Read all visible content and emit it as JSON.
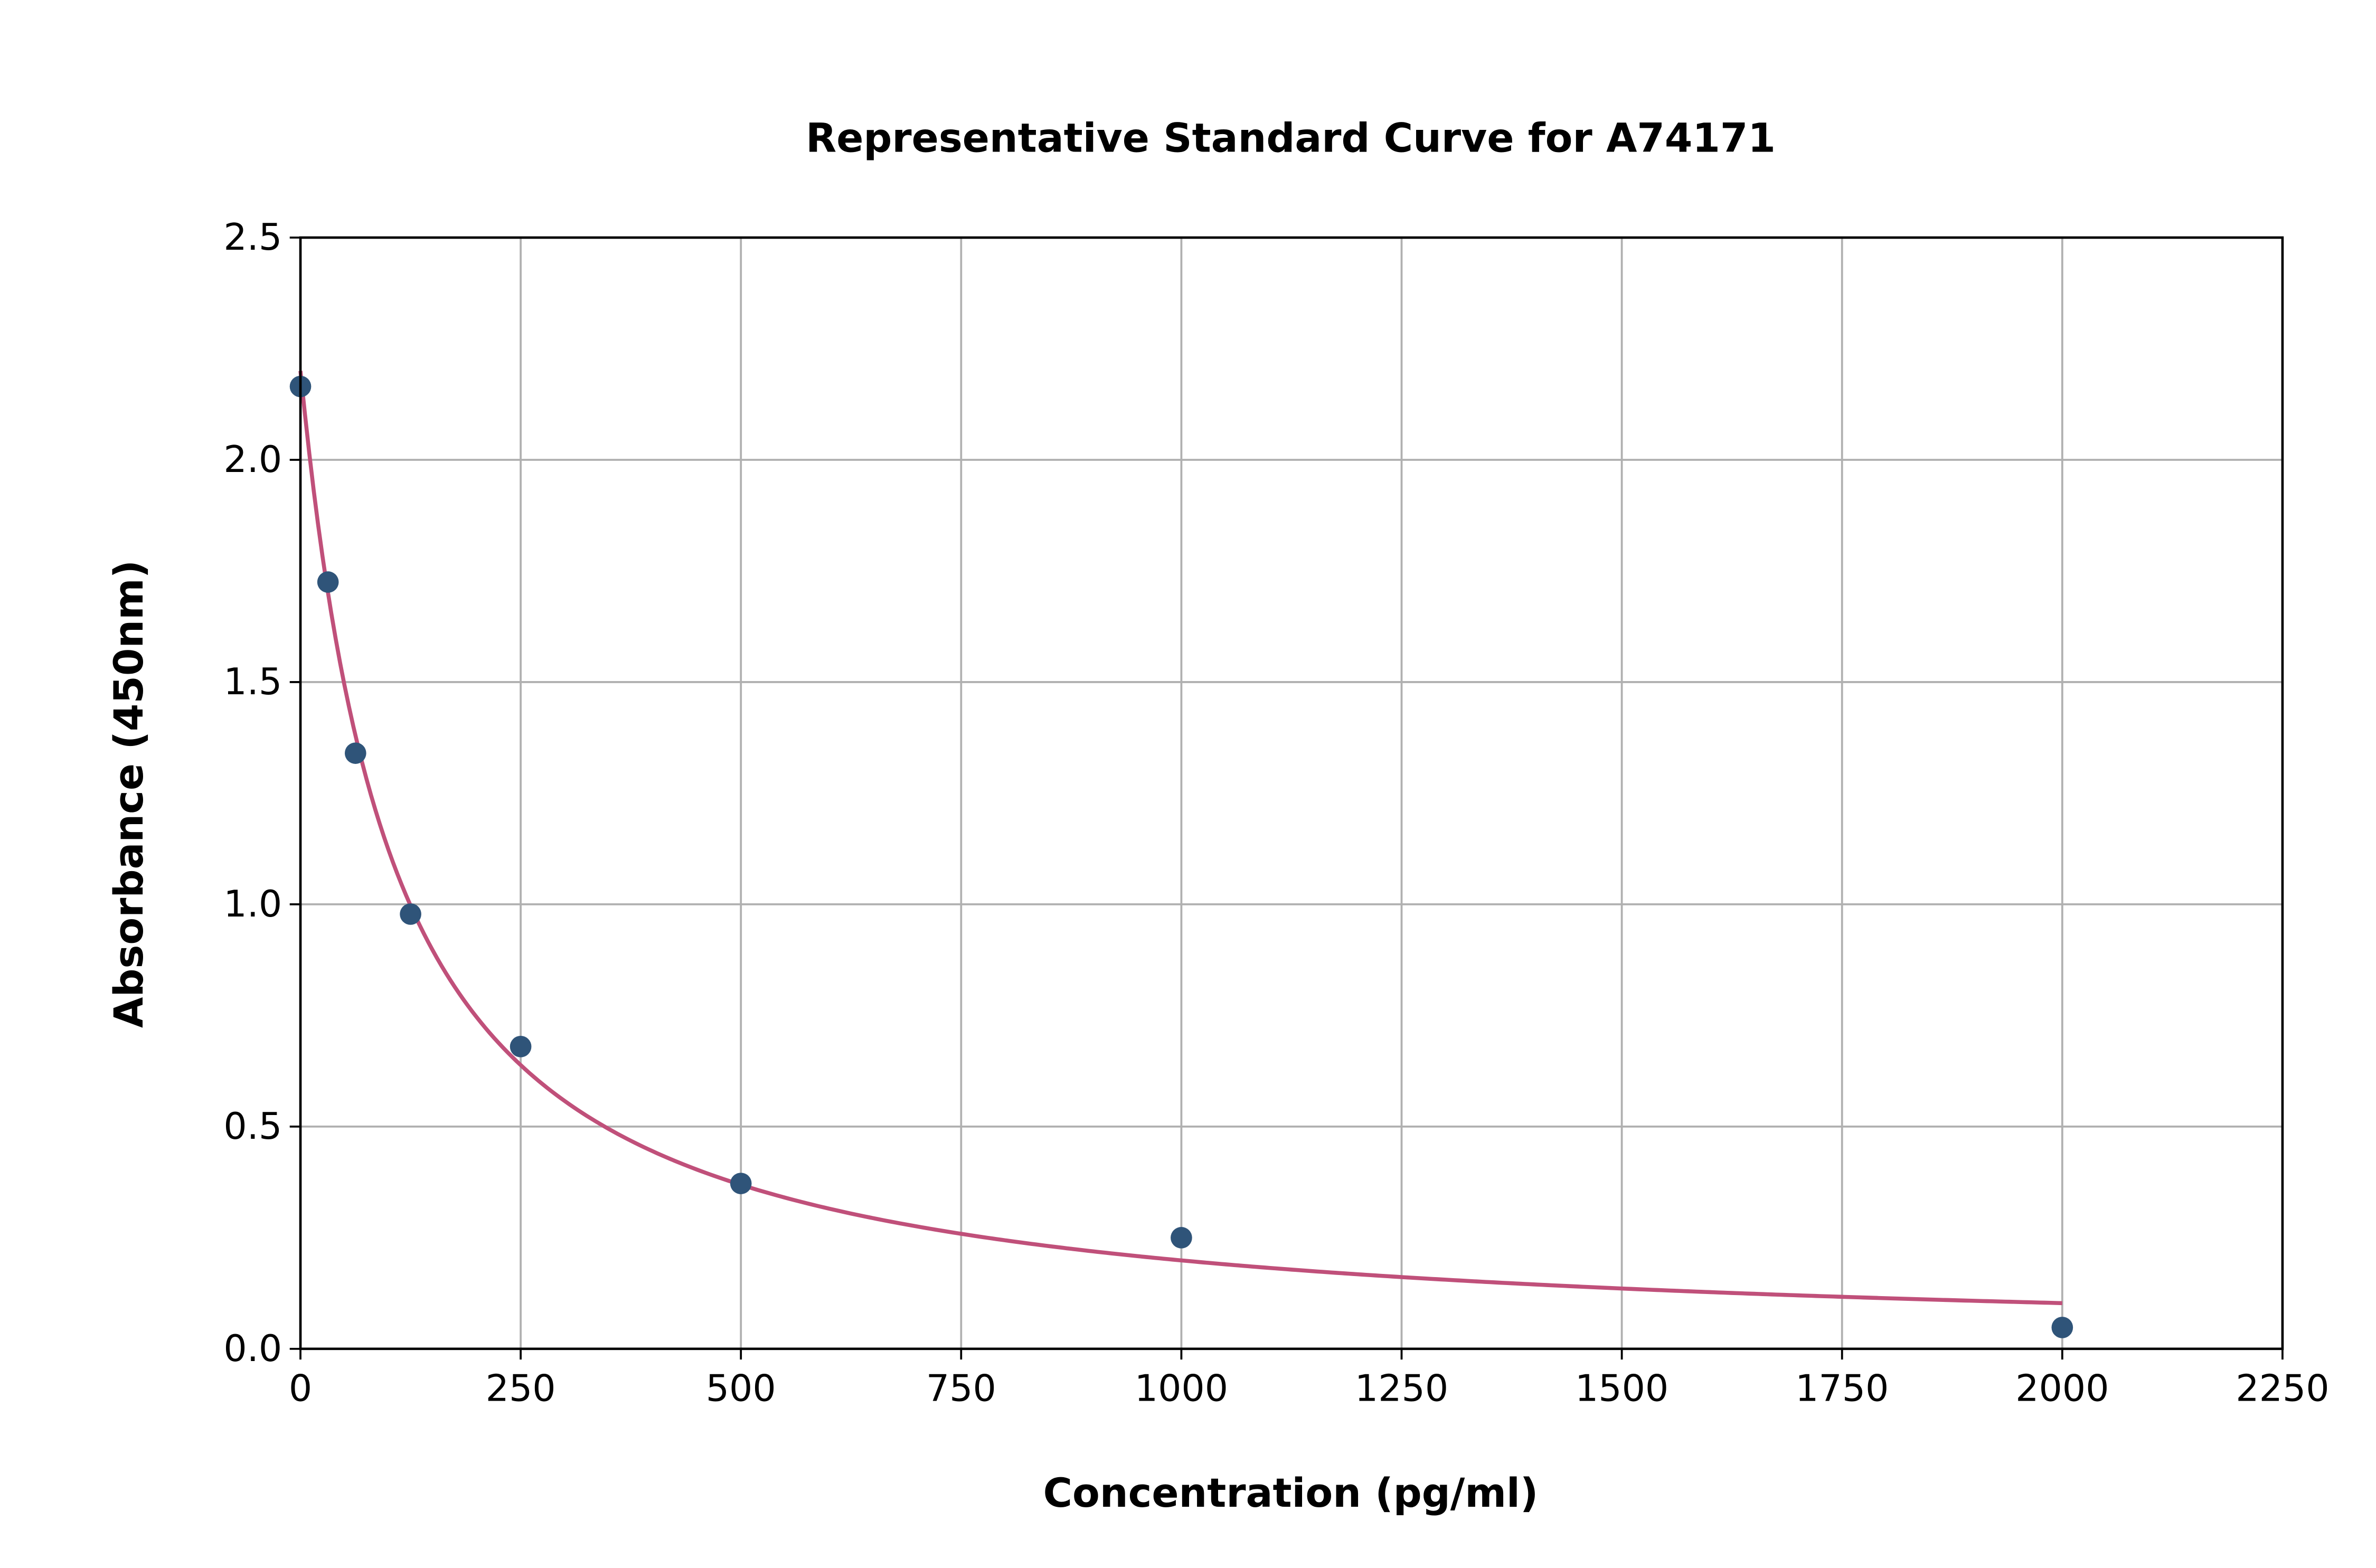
{
  "chart_data": {
    "type": "scatter",
    "title": "Representative Standard Curve for A74171",
    "xlabel": "Concentration (pg/ml)",
    "ylabel": "Absorbance (450nm)",
    "xlim": [
      0,
      2250
    ],
    "ylim": [
      0,
      2.5
    ],
    "xticks": [
      "0",
      "250",
      "500",
      "750",
      "1000",
      "1250",
      "1500",
      "1750",
      "2000",
      "2250"
    ],
    "yticks": [
      "0.0",
      "0.5",
      "1.0",
      "1.5",
      "2.0",
      "2.5"
    ],
    "grid": true,
    "points": {
      "x": [
        0,
        31.25,
        62.5,
        125,
        250,
        500,
        1000,
        2000
      ],
      "y": [
        2.165,
        1.725,
        1.34,
        0.978,
        0.68,
        0.372,
        0.25,
        0.048
      ]
    },
    "fit_curve": {
      "model": "4PL",
      "a": 2.2,
      "b": 1.02,
      "c": 104,
      "d": 0,
      "x_range": [
        0,
        2000
      ]
    },
    "colors": {
      "points": "#2f5479",
      "curve": "#c0507a",
      "grid": "#b0b0b0"
    }
  }
}
